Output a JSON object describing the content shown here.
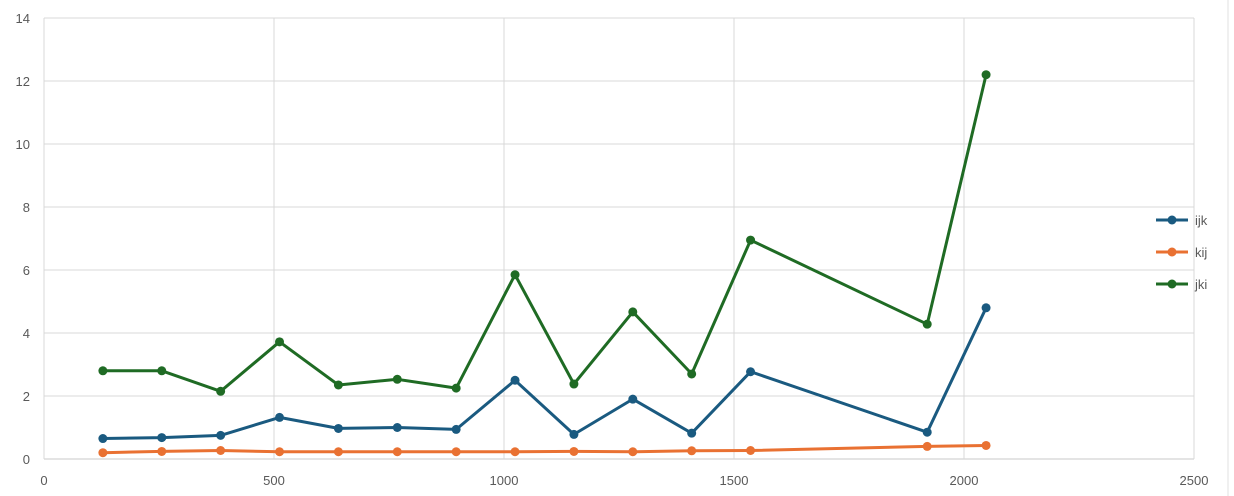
{
  "chart_data": {
    "type": "scatter",
    "title": "",
    "xlabel": "",
    "ylabel": "",
    "xlim": [
      0,
      2500
    ],
    "ylim": [
      0,
      14
    ],
    "x_ticks": [
      0,
      500,
      1000,
      1500,
      2000,
      2500
    ],
    "y_ticks": [
      0,
      2,
      4,
      6,
      8,
      10,
      12,
      14
    ],
    "grid": true,
    "legend_position": "right",
    "series": [
      {
        "name": "ijk",
        "color": "#1a5a80",
        "points": [
          [
            128,
            0.65
          ],
          [
            256,
            0.68
          ],
          [
            384,
            0.75
          ],
          [
            512,
            1.32
          ],
          [
            640,
            0.97
          ],
          [
            768,
            1.0
          ],
          [
            896,
            0.94
          ],
          [
            1024,
            2.5
          ],
          [
            1152,
            0.78
          ],
          [
            1280,
            1.9
          ],
          [
            1408,
            0.82
          ],
          [
            1536,
            2.77
          ],
          [
            1920,
            0.85
          ],
          [
            2048,
            4.8
          ]
        ]
      },
      {
        "name": "kij",
        "color": "#e97132",
        "points": [
          [
            128,
            0.2
          ],
          [
            256,
            0.24
          ],
          [
            384,
            0.27
          ],
          [
            512,
            0.23
          ],
          [
            640,
            0.23
          ],
          [
            768,
            0.23
          ],
          [
            896,
            0.23
          ],
          [
            1024,
            0.23
          ],
          [
            1152,
            0.24
          ],
          [
            1280,
            0.23
          ],
          [
            1408,
            0.26
          ],
          [
            1536,
            0.27
          ],
          [
            1920,
            0.4
          ],
          [
            2048,
            0.43
          ]
        ]
      },
      {
        "name": "jki",
        "color": "#1f6b24",
        "points": [
          [
            128,
            2.8
          ],
          [
            256,
            2.8
          ],
          [
            384,
            2.15
          ],
          [
            512,
            3.72
          ],
          [
            640,
            2.35
          ],
          [
            768,
            2.53
          ],
          [
            896,
            2.25
          ],
          [
            1024,
            5.85
          ],
          [
            1152,
            2.38
          ],
          [
            1280,
            4.67
          ],
          [
            1408,
            2.7
          ],
          [
            1536,
            6.95
          ],
          [
            1920,
            4.28
          ],
          [
            2048,
            12.2
          ]
        ]
      }
    ]
  }
}
